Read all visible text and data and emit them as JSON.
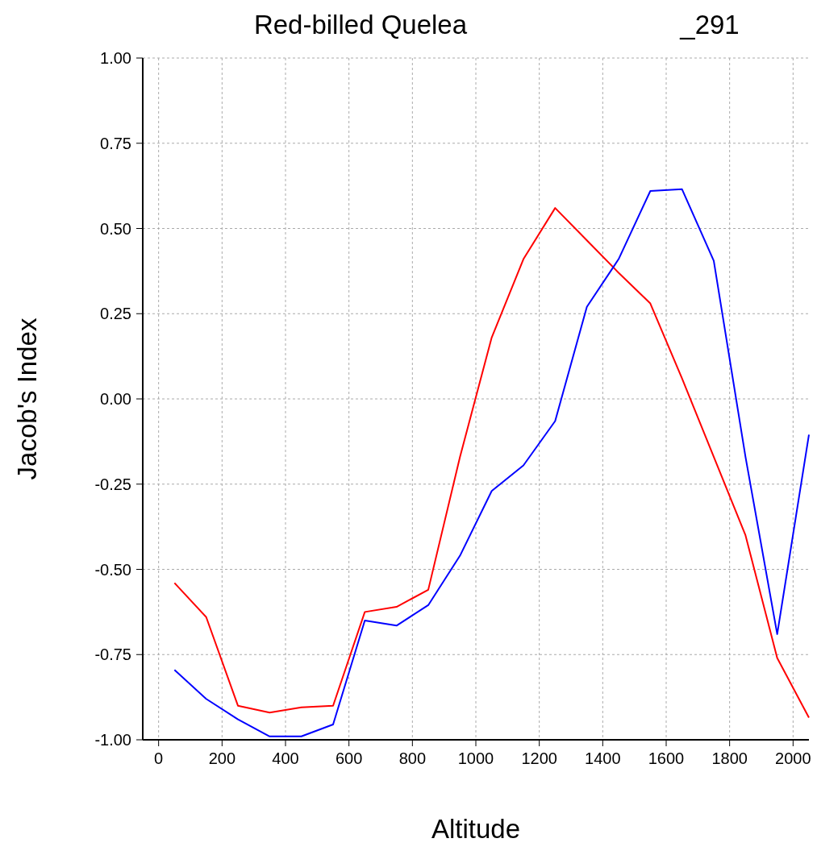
{
  "chart_data": {
    "type": "line",
    "title": "Red-billed Quelea",
    "subtitle": "_291",
    "xlabel": "Altitude",
    "ylabel": "Jacob's Index",
    "x": [
      50,
      150,
      250,
      350,
      450,
      550,
      650,
      750,
      850,
      950,
      1050,
      1150,
      1250,
      1350,
      1450,
      1550,
      1650,
      1750,
      1850,
      1950,
      2050
    ],
    "series": [
      {
        "color": "#ff0000",
        "values": [
          -0.54,
          -0.64,
          -0.9,
          -0.92,
          -0.905,
          -0.9,
          -0.625,
          -0.61,
          -0.56,
          -0.17,
          0.18,
          0.41,
          0.56,
          0.465,
          0.37,
          0.28,
          0.06,
          -0.17,
          -0.4,
          -0.76,
          -0.935
        ]
      },
      {
        "color": "#0000ff",
        "values": [
          -0.795,
          -0.88,
          -0.94,
          -0.99,
          -0.99,
          -0.955,
          -0.65,
          -0.665,
          -0.605,
          -0.46,
          -0.27,
          -0.195,
          -0.065,
          0.27,
          0.41,
          0.61,
          0.615,
          0.405,
          -0.17,
          -0.69,
          -0.105
        ]
      }
    ],
    "xlim": [
      -50,
      2050
    ],
    "xticks": [
      0,
      200,
      400,
      600,
      800,
      1000,
      1200,
      1400,
      1600,
      1800,
      2000
    ],
    "ylim": [
      -1,
      1
    ],
    "yticks": [
      {
        "value": -1,
        "label": "-1.00"
      },
      {
        "value": -0.75,
        "label": "-0.75"
      },
      {
        "value": -0.5,
        "label": "-0.50"
      },
      {
        "value": -0.25,
        "label": "-0.25"
      },
      {
        "value": 0,
        "label": "0.00"
      },
      {
        "value": 0.25,
        "label": "0.25"
      },
      {
        "value": 0.5,
        "label": "0.50"
      },
      {
        "value": 0.75,
        "label": "0.75"
      },
      {
        "value": 1,
        "label": "1.00"
      }
    ],
    "grid": true,
    "marker": "none",
    "line_style": "solid"
  }
}
